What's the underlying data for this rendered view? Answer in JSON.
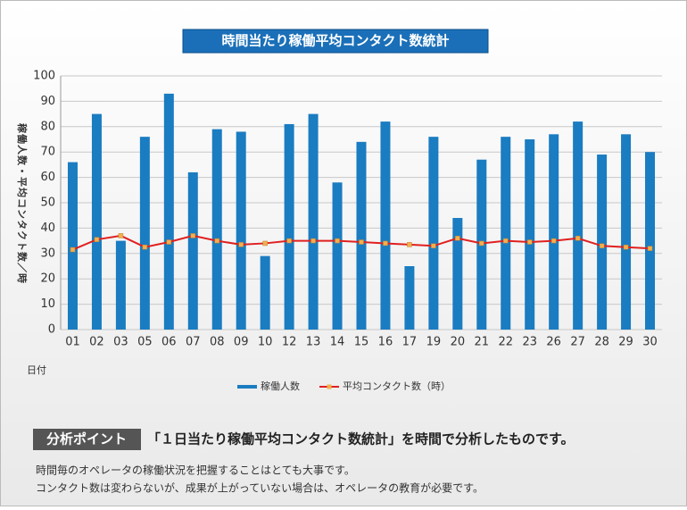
{
  "chart_data": {
    "type": "bar",
    "title": "時間当たり稼働平均コンタクト数統計",
    "y_label": "稼働人数・平均コンタクト数／時",
    "x_label": "日付",
    "categories": [
      "01",
      "02",
      "03",
      "05",
      "06",
      "07",
      "08",
      "09",
      "10",
      "12",
      "13",
      "14",
      "15",
      "16",
      "17",
      "19",
      "20",
      "21",
      "22",
      "23",
      "26",
      "27",
      "28",
      "29",
      "30"
    ],
    "series": [
      {
        "name": "稼働人数",
        "type": "bar",
        "color": "#1a7cc1",
        "values": [
          66,
          85,
          35,
          76,
          93,
          62,
          79,
          78,
          29,
          81,
          85,
          58,
          74,
          82,
          25,
          76,
          44,
          67,
          76,
          75,
          77,
          82,
          69,
          77,
          70
        ]
      },
      {
        "name": "平均コンタクト数（時）",
        "type": "line",
        "color": "#e02020",
        "marker_color": "#f0b050",
        "values": [
          31.5,
          35.5,
          37,
          32.5,
          34.5,
          37,
          35,
          33.5,
          34,
          35,
          35,
          35,
          34.5,
          34,
          33.5,
          33,
          36,
          34,
          35,
          34.5,
          35,
          36,
          33,
          32.5,
          32
        ]
      }
    ],
    "ylim": [
      0,
      100
    ],
    "yticks": [
      0,
      10,
      20,
      30,
      40,
      50,
      60,
      70,
      80,
      90,
      100
    ],
    "grid": true
  },
  "analysis": {
    "tag": "分析ポイント",
    "headline": "「１日当たり稼働平均コンタクト数統計」を時間で分析したものです。",
    "lines": [
      "時間毎のオペレータの稼働状況を把握することはとても大事です。",
      "コンタクト数は変わらないが、成果が上がっていない場合は、オペレータの教育が必要です。"
    ]
  }
}
